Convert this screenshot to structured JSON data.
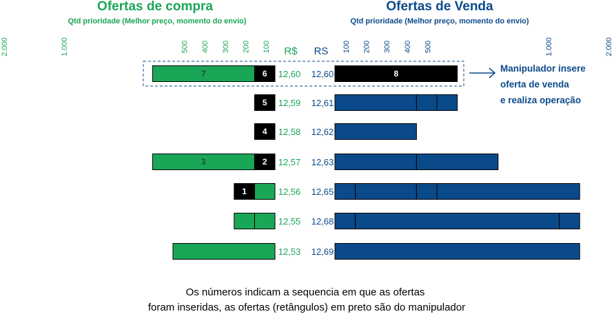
{
  "colors": {
    "buy": "#1aa657",
    "sell": "#0b4a8a",
    "manip": "#000000",
    "buy_text": "#1aa657",
    "sell_text": "#0b4a8a",
    "marker_text": "#ffffff",
    "seq_on_color": "#1f4f3a"
  },
  "buy_side": {
    "title": "Ofertas de compra",
    "subtitle": "Qtd prioridade (Melhor preço, momento do envio)",
    "price_header": "R$",
    "ticks": [
      "2.000",
      "1.000",
      "500",
      "400",
      "300",
      "200",
      "100"
    ],
    "tick_values": [
      2000,
      1000,
      500,
      400,
      300,
      200,
      100
    ]
  },
  "sell_side": {
    "title": "Ofertas de Venda",
    "subtitle": "Qtd prioridade (Melhor preço, momento do envio)",
    "price_header": "RS",
    "ticks": [
      "100",
      "200",
      "300",
      "400",
      "500",
      "1.000",
      "2.000"
    ],
    "tick_values": [
      100,
      200,
      300,
      400,
      500,
      1000,
      2000
    ]
  },
  "rows": [
    {
      "buy_price": "12,60",
      "sell_price": "12,60",
      "buy_segments": [
        {
          "qty": 100,
          "color": "manip",
          "label": "6"
        },
        {
          "qty": 500,
          "color": "buy",
          "label": "7"
        }
      ],
      "sell_segments": [
        {
          "qty": 600,
          "color": "manip",
          "label": "8"
        }
      ],
      "highlighted": true
    },
    {
      "buy_price": "12,59",
      "sell_price": "12,61",
      "buy_segments": [
        {
          "qty": 100,
          "color": "manip",
          "label": "5"
        }
      ],
      "sell_segments": [
        {
          "qty": 400,
          "color": "sell"
        },
        {
          "qty": 100,
          "color": "sell"
        },
        {
          "qty": 100,
          "color": "sell"
        }
      ]
    },
    {
      "buy_price": "12,58",
      "sell_price": "12,62",
      "buy_segments": [
        {
          "qty": 100,
          "color": "manip",
          "label": "4"
        }
      ],
      "sell_segments": [
        {
          "qty": 400,
          "color": "sell"
        }
      ]
    },
    {
      "buy_price": "12,57",
      "sell_price": "12,63",
      "buy_segments": [
        {
          "qty": 100,
          "color": "manip",
          "label": "2"
        },
        {
          "qty": 500,
          "color": "buy",
          "label": "3"
        }
      ],
      "sell_segments": [
        {
          "qty": 400,
          "color": "sell"
        },
        {
          "qty": 400,
          "color": "sell"
        }
      ]
    },
    {
      "buy_price": "12,56",
      "sell_price": "12,65",
      "buy_segments": [
        {
          "qty": 100,
          "color": "buy"
        },
        {
          "qty": 100,
          "color": "manip",
          "label": "1"
        }
      ],
      "sell_segments": [
        {
          "qty": 100,
          "color": "sell"
        },
        {
          "qty": 300,
          "color": "sell"
        },
        {
          "qty": 100,
          "color": "sell"
        },
        {
          "qty": 700,
          "color": "sell"
        }
      ]
    },
    {
      "buy_price": "12,55",
      "sell_price": "12,68",
      "buy_segments": [
        {
          "qty": 100,
          "color": "buy"
        },
        {
          "qty": 100,
          "color": "buy"
        }
      ],
      "sell_segments": [
        {
          "qty": 100,
          "color": "sell"
        },
        {
          "qty": 1000,
          "color": "sell"
        },
        {
          "qty": 100,
          "color": "sell"
        }
      ]
    },
    {
      "buy_price": "12,53",
      "sell_price": "12,69",
      "buy_segments": [
        {
          "qty": 500,
          "color": "buy"
        }
      ],
      "sell_segments": [
        {
          "qty": 1200,
          "color": "sell"
        }
      ]
    }
  ],
  "annotation": {
    "lines": [
      "Manipulador insere",
      "oferta de venda",
      "e realiza operação"
    ]
  },
  "footer": {
    "lines": [
      "Os números indicam a sequencia em que as ofertas",
      "foram inseridas, as ofertas (retângulos) em preto são do manipulador"
    ]
  }
}
